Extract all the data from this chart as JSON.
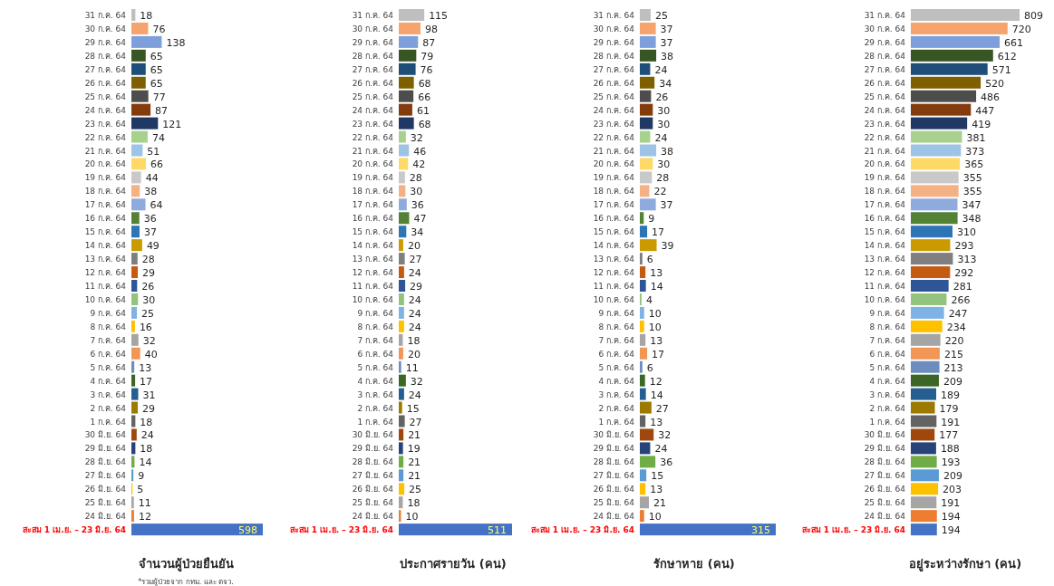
{
  "chart_data": [
    {
      "type": "bar",
      "orientation": "horizontal",
      "data_labels": true,
      "title": "จำนวนผู้ป่วยยืนยัน",
      "annotations": [
        "*รวมผู้ป่วยจาก กทม. และ ตจว."
      ],
      "categories": [
        "31 ก.ค. 64",
        "30 ก.ค. 64",
        "29 ก.ค. 64",
        "28 ก.ค. 64",
        "27 ก.ค. 64",
        "26 ก.ค. 64",
        "25 ก.ค. 64",
        "24 ก.ค. 64",
        "23 ก.ค. 64",
        "22 ก.ค. 64",
        "21 ก.ค. 64",
        "20 ก.ค. 64",
        "19 ก.ค. 64",
        "18 ก.ค. 64",
        "17 ก.ค. 64",
        "16 ก.ค. 64",
        "15 ก.ค. 64",
        "14 ก.ค. 64",
        "13 ก.ค. 64",
        "12 ก.ค. 64",
        "11 ก.ค. 64",
        "10 ก.ค. 64",
        "9 ก.ค. 64",
        "8 ก.ค. 64",
        "7 ก.ค. 64",
        "6 ก.ค. 64",
        "5 ก.ค. 64",
        "4 ก.ค. 64",
        "3 ก.ค. 64",
        "2 ก.ค. 64",
        "1 ก.ค. 64",
        "30 มิ.ย. 64",
        "29 มิ.ย. 64",
        "28 มิ.ย. 64",
        "27 มิ.ย. 64",
        "26 มิ.ย. 64",
        "25 มิ.ย. 64",
        "24 มิ.ย. 64",
        "สะสม 1 เม.ย. – 23 มิ.ย. 64"
      ],
      "values": [
        18,
        76,
        138,
        65,
        65,
        65,
        77,
        87,
        121,
        74,
        51,
        66,
        44,
        38,
        64,
        36,
        37,
        49,
        28,
        29,
        26,
        30,
        25,
        16,
        32,
        40,
        13,
        17,
        31,
        29,
        18,
        24,
        18,
        14,
        9,
        5,
        11,
        12,
        598
      ],
      "colors": [
        "#bfbfbf",
        "#f4a46c",
        "#7f9fdc",
        "#375623",
        "#1f4e79",
        "#7f6000",
        "#4d4d4d",
        "#843c0c",
        "#1f3864",
        "#a9d18e",
        "#9dc3e6",
        "#ffd966",
        "#c9c9c9",
        "#f4b183",
        "#8faadc",
        "#548235",
        "#2e75b6",
        "#c99b00",
        "#7f7f7f",
        "#c55a11",
        "#2f5597",
        "#93c47d",
        "#7fb2e5",
        "#ffc000",
        "#a5a5a5",
        "#f19654",
        "#6c8ebf",
        "#3b6626",
        "#255e91",
        "#9c7a00",
        "#636363",
        "#9e480e",
        "#264478",
        "#70ad47",
        "#5b9bd5",
        "#ffc000",
        "#a5a5a5",
        "#ed7d31",
        "#4472c4"
      ]
    },
    {
      "type": "bar",
      "orientation": "horizontal",
      "data_labels": true,
      "title": "ประกาศรายวัน (คน)",
      "categories": [
        "31 ก.ค. 64",
        "30 ก.ค. 64",
        "29 ก.ค. 64",
        "28 ก.ค. 64",
        "27 ก.ค. 64",
        "26 ก.ค. 64",
        "25 ก.ค. 64",
        "24 ก.ค. 64",
        "23 ก.ค. 64",
        "22 ก.ค. 64",
        "21 ก.ค. 64",
        "20 ก.ค. 64",
        "19 ก.ค. 64",
        "18 ก.ค. 64",
        "17 ก.ค. 64",
        "16 ก.ค. 64",
        "15 ก.ค. 64",
        "14 ก.ค. 64",
        "13 ก.ค. 64",
        "12 ก.ค. 64",
        "11 ก.ค. 64",
        "10 ก.ค. 64",
        "9 ก.ค. 64",
        "8 ก.ค. 64",
        "7 ก.ค. 64",
        "6 ก.ค. 64",
        "5 ก.ค. 64",
        "4 ก.ค. 64",
        "3 ก.ค. 64",
        "2 ก.ค. 64",
        "1 ก.ค. 64",
        "30 มิ.ย. 64",
        "29 มิ.ย. 64",
        "28 มิ.ย. 64",
        "27 มิ.ย. 64",
        "26 มิ.ย. 64",
        "25 มิ.ย. 64",
        "24 มิ.ย. 64",
        "สะสม 1 เม.ย. – 23 มิ.ย. 64"
      ],
      "values": [
        115,
        98,
        87,
        79,
        76,
        68,
        66,
        61,
        68,
        32,
        46,
        42,
        28,
        30,
        36,
        47,
        34,
        20,
        27,
        24,
        29,
        24,
        24,
        24,
        18,
        20,
        11,
        32,
        24,
        15,
        27,
        21,
        19,
        21,
        21,
        25,
        18,
        10,
        511
      ],
      "colors": [
        "#bfbfbf",
        "#f4a46c",
        "#7f9fdc",
        "#375623",
        "#1f4e79",
        "#7f6000",
        "#4d4d4d",
        "#843c0c",
        "#1f3864",
        "#a9d18e",
        "#9dc3e6",
        "#ffd966",
        "#c9c9c9",
        "#f4b183",
        "#8faadc",
        "#548235",
        "#2e75b6",
        "#c99b00",
        "#7f7f7f",
        "#c55a11",
        "#2f5597",
        "#93c47d",
        "#7fb2e5",
        "#ffc000",
        "#a5a5a5",
        "#f19654",
        "#6c8ebf",
        "#3b6626",
        "#255e91",
        "#9c7a00",
        "#636363",
        "#9e480e",
        "#264478",
        "#70ad47",
        "#5b9bd5",
        "#ffc000",
        "#a5a5a5",
        "#ed7d31",
        "#4472c4"
      ]
    },
    {
      "type": "bar",
      "orientation": "horizontal",
      "data_labels": true,
      "title": "รักษาหาย (คน)",
      "categories": [
        "31 ก.ค. 64",
        "30 ก.ค. 64",
        "29 ก.ค. 64",
        "28 ก.ค. 64",
        "27 ก.ค. 64",
        "26 ก.ค. 64",
        "25 ก.ค. 64",
        "24 ก.ค. 64",
        "23 ก.ค. 64",
        "22 ก.ค. 64",
        "21 ก.ค. 64",
        "20 ก.ค. 64",
        "19 ก.ค. 64",
        "18 ก.ค. 64",
        "17 ก.ค. 64",
        "16 ก.ค. 64",
        "15 ก.ค. 64",
        "14 ก.ค. 64",
        "13 ก.ค. 64",
        "12 ก.ค. 64",
        "11 ก.ค. 64",
        "10 ก.ค. 64",
        "9 ก.ค. 64",
        "8 ก.ค. 64",
        "7 ก.ค. 64",
        "6 ก.ค. 64",
        "5 ก.ค. 64",
        "4 ก.ค. 64",
        "3 ก.ค. 64",
        "2 ก.ค. 64",
        "1 ก.ค. 64",
        "30 มิ.ย. 64",
        "29 มิ.ย. 64",
        "28 มิ.ย. 64",
        "27 มิ.ย. 64",
        "26 มิ.ย. 64",
        "25 มิ.ย. 64",
        "24 มิ.ย. 64",
        "สะสม 1 เม.ย. – 23 มิ.ย. 64"
      ],
      "values": [
        25,
        37,
        37,
        38,
        24,
        34,
        26,
        30,
        30,
        24,
        38,
        30,
        28,
        22,
        37,
        9,
        17,
        39,
        6,
        13,
        14,
        4,
        10,
        10,
        13,
        17,
        6,
        12,
        14,
        27,
        13,
        32,
        24,
        36,
        15,
        13,
        21,
        10,
        315
      ],
      "colors": [
        "#bfbfbf",
        "#f4a46c",
        "#7f9fdc",
        "#375623",
        "#1f4e79",
        "#7f6000",
        "#4d4d4d",
        "#843c0c",
        "#1f3864",
        "#a9d18e",
        "#9dc3e6",
        "#ffd966",
        "#c9c9c9",
        "#f4b183",
        "#8faadc",
        "#548235",
        "#2e75b6",
        "#c99b00",
        "#7f7f7f",
        "#c55a11",
        "#2f5597",
        "#93c47d",
        "#7fb2e5",
        "#ffc000",
        "#a5a5a5",
        "#f19654",
        "#6c8ebf",
        "#3b6626",
        "#255e91",
        "#9c7a00",
        "#636363",
        "#9e480e",
        "#264478",
        "#70ad47",
        "#5b9bd5",
        "#ffc000",
        "#a5a5a5",
        "#ed7d31",
        "#4472c4"
      ]
    },
    {
      "type": "bar",
      "orientation": "horizontal",
      "data_labels": true,
      "title": "อยู่ระหว่างรักษา (คน)",
      "categories": [
        "31 ก.ค. 64",
        "30 ก.ค. 64",
        "29 ก.ค. 64",
        "28 ก.ค. 64",
        "27 ก.ค. 64",
        "26 ก.ค. 64",
        "25 ก.ค. 64",
        "24 ก.ค. 64",
        "23 ก.ค. 64",
        "22 ก.ค. 64",
        "21 ก.ค. 64",
        "20 ก.ค. 64",
        "19 ก.ค. 64",
        "18 ก.ค. 64",
        "17 ก.ค. 64",
        "16 ก.ค. 64",
        "15 ก.ค. 64",
        "14 ก.ค. 64",
        "13 ก.ค. 64",
        "12 ก.ค. 64",
        "11 ก.ค. 64",
        "10 ก.ค. 64",
        "9 ก.ค. 64",
        "8 ก.ค. 64",
        "7 ก.ค. 64",
        "6 ก.ค. 64",
        "5 ก.ค. 64",
        "4 ก.ค. 64",
        "3 ก.ค. 64",
        "2 ก.ค. 64",
        "1 ก.ค. 64",
        "30 มิ.ย. 64",
        "29 มิ.ย. 64",
        "28 มิ.ย. 64",
        "27 มิ.ย. 64",
        "26 มิ.ย. 64",
        "25 มิ.ย. 64",
        "24 มิ.ย. 64",
        "สะสม 1 เม.ย. – 23 มิ.ย. 64"
      ],
      "values": [
        809,
        720,
        661,
        612,
        571,
        520,
        486,
        447,
        419,
        381,
        373,
        365,
        355,
        355,
        347,
        348,
        310,
        293,
        313,
        292,
        281,
        266,
        247,
        234,
        220,
        215,
        213,
        209,
        189,
        179,
        191,
        177,
        188,
        193,
        209,
        203,
        191,
        194,
        194
      ],
      "colors": [
        "#bfbfbf",
        "#f4a46c",
        "#7f9fdc",
        "#375623",
        "#1f4e79",
        "#7f6000",
        "#4d4d4d",
        "#843c0c",
        "#1f3864",
        "#a9d18e",
        "#9dc3e6",
        "#ffd966",
        "#c9c9c9",
        "#f4b183",
        "#8faadc",
        "#548235",
        "#2e75b6",
        "#c99b00",
        "#7f7f7f",
        "#c55a11",
        "#2f5597",
        "#93c47d",
        "#7fb2e5",
        "#ffc000",
        "#a5a5a5",
        "#f19654",
        "#6c8ebf",
        "#3b6626",
        "#255e91",
        "#9c7a00",
        "#636363",
        "#9e480e",
        "#264478",
        "#70ad47",
        "#5b9bd5",
        "#ffc000",
        "#a5a5a5",
        "#ed7d31",
        "#4472c4"
      ]
    }
  ]
}
